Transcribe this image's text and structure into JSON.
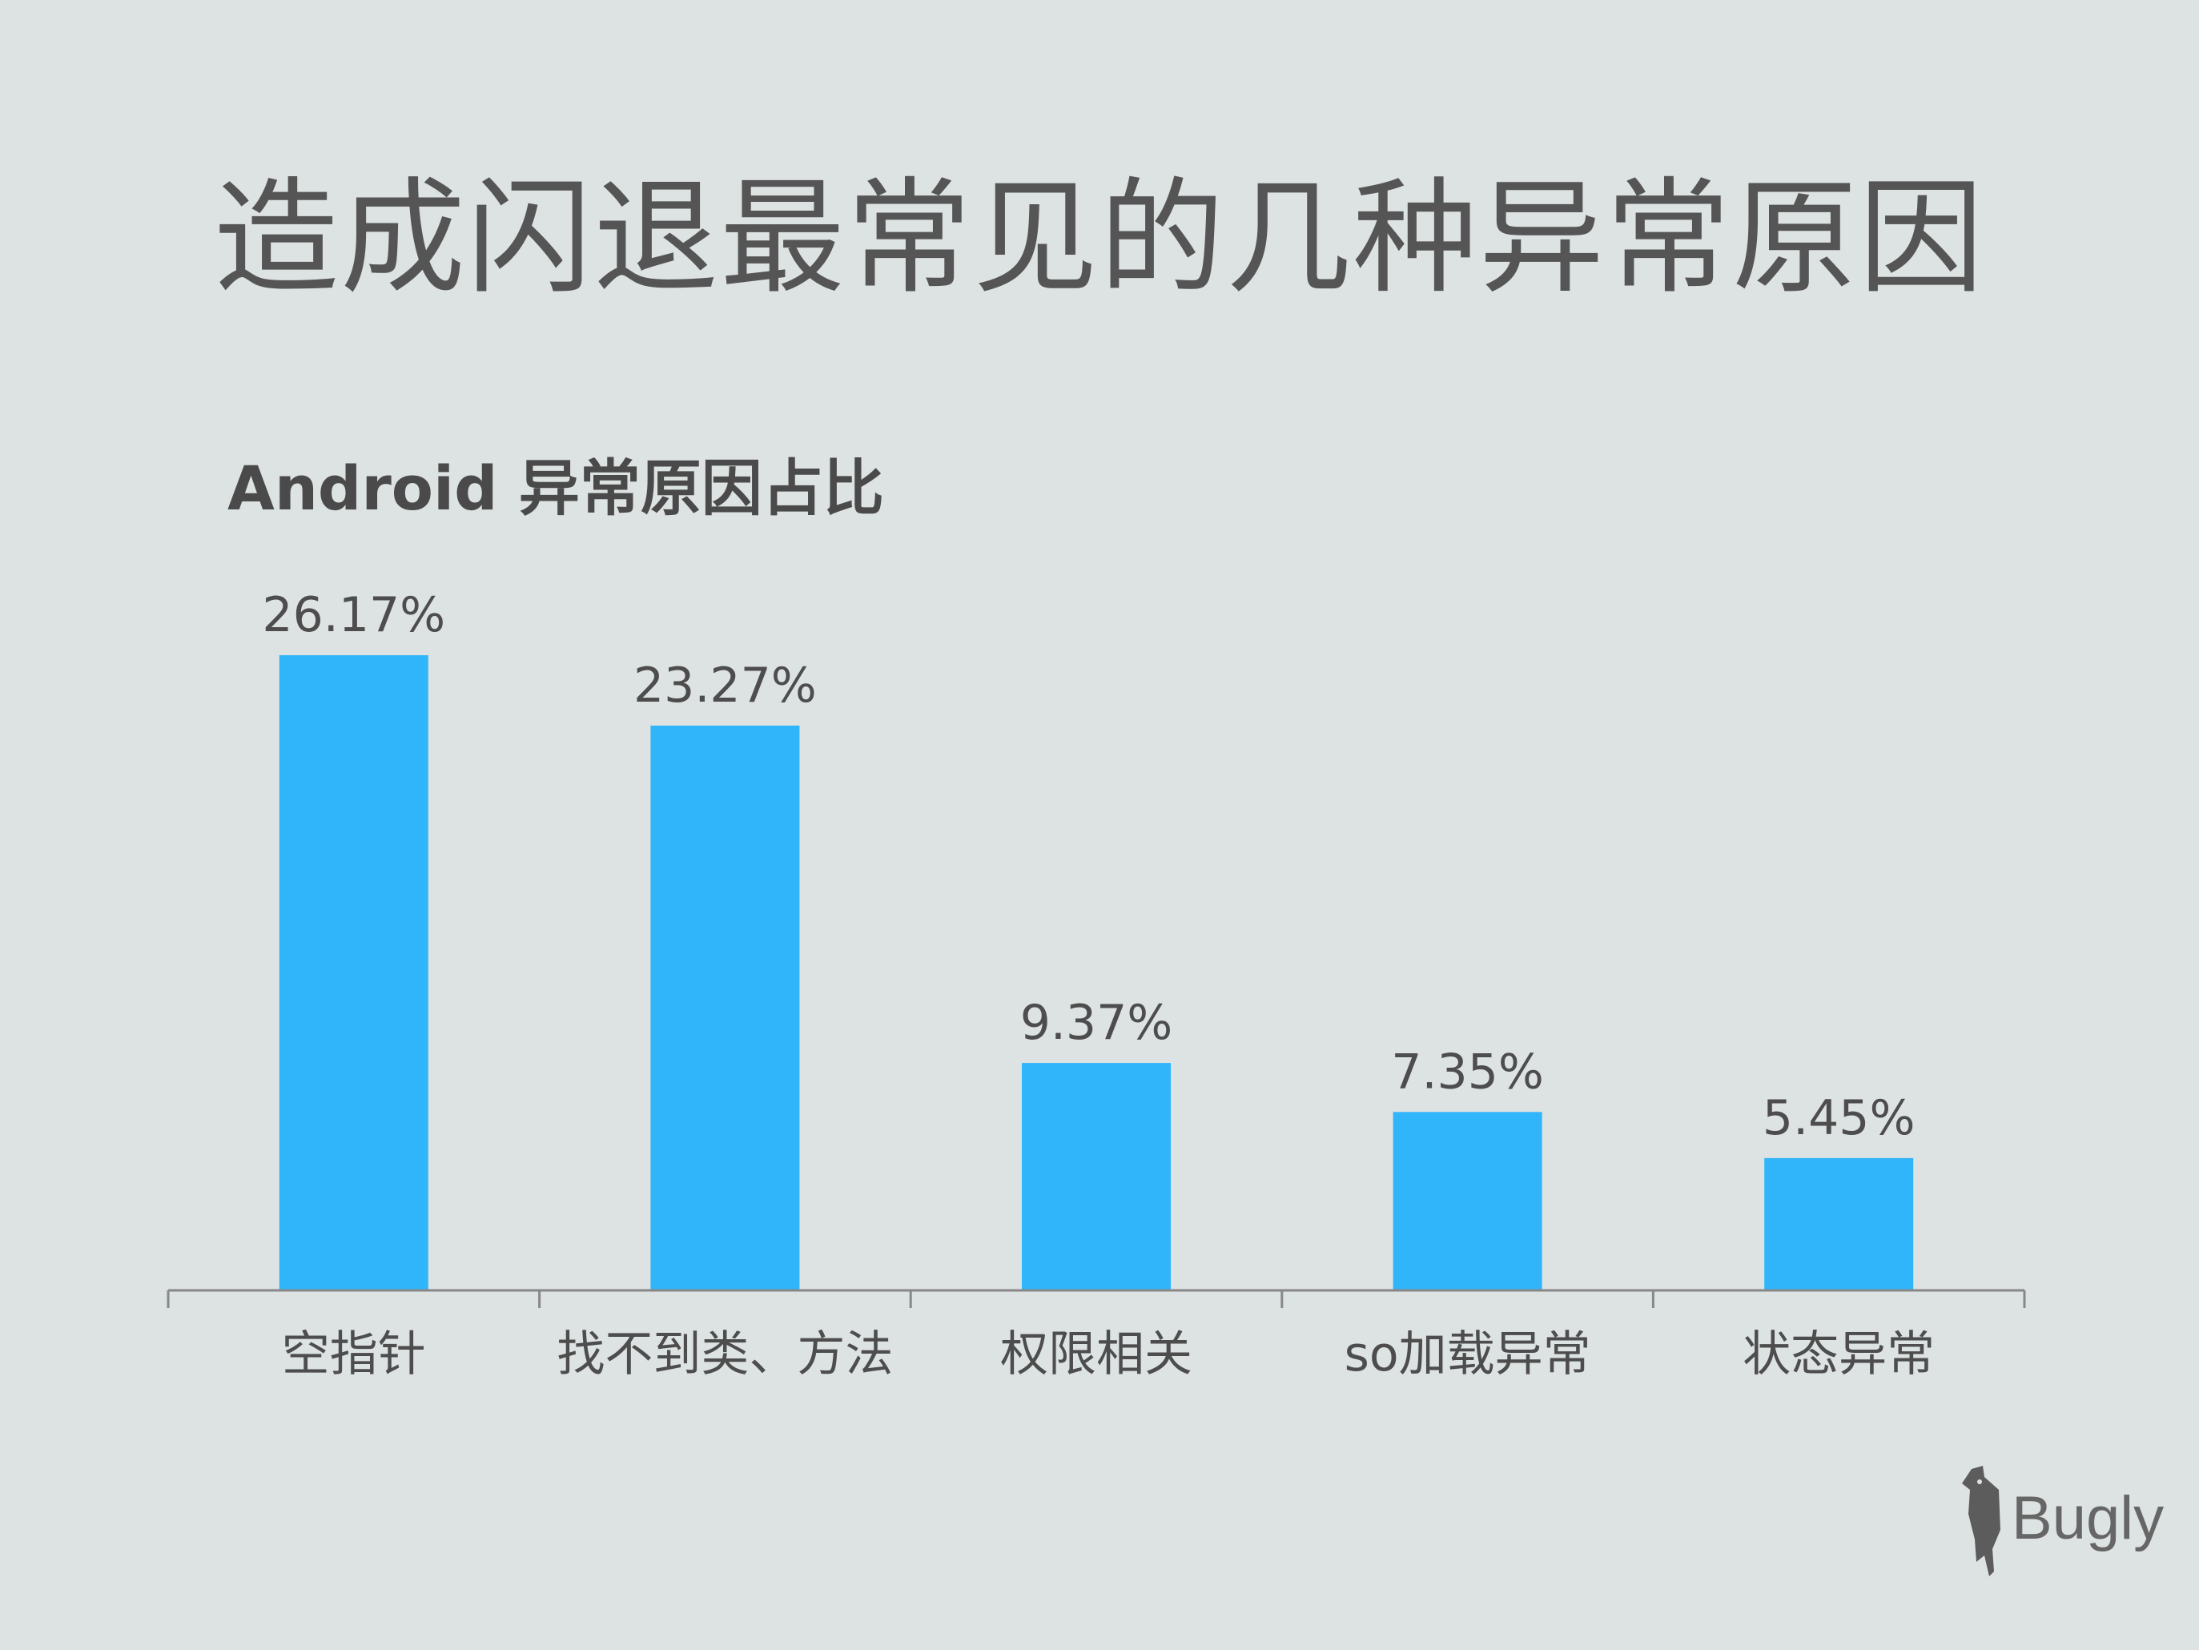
{
  "page": {
    "title": "造成闪退最常见的几种异常原因"
  },
  "chart_data": {
    "type": "bar",
    "title": "Android 异常原因占比",
    "categories": [
      "空指针",
      "找不到类、方法",
      "权限相关",
      "so加载异常",
      "状态异常"
    ],
    "values": [
      26.17,
      23.27,
      9.37,
      7.35,
      5.45
    ],
    "value_labels": [
      "26.17%",
      "23.27%",
      "9.37%",
      "7.35%",
      "5.45%"
    ],
    "unit": "%",
    "grid": false,
    "legend": "none",
    "colors": {
      "bar": "#31b5fa",
      "axis": "#888888",
      "text": "#4d4d4d"
    }
  },
  "brand": {
    "name": "Bugly",
    "icon": "woodpecker-icon"
  }
}
